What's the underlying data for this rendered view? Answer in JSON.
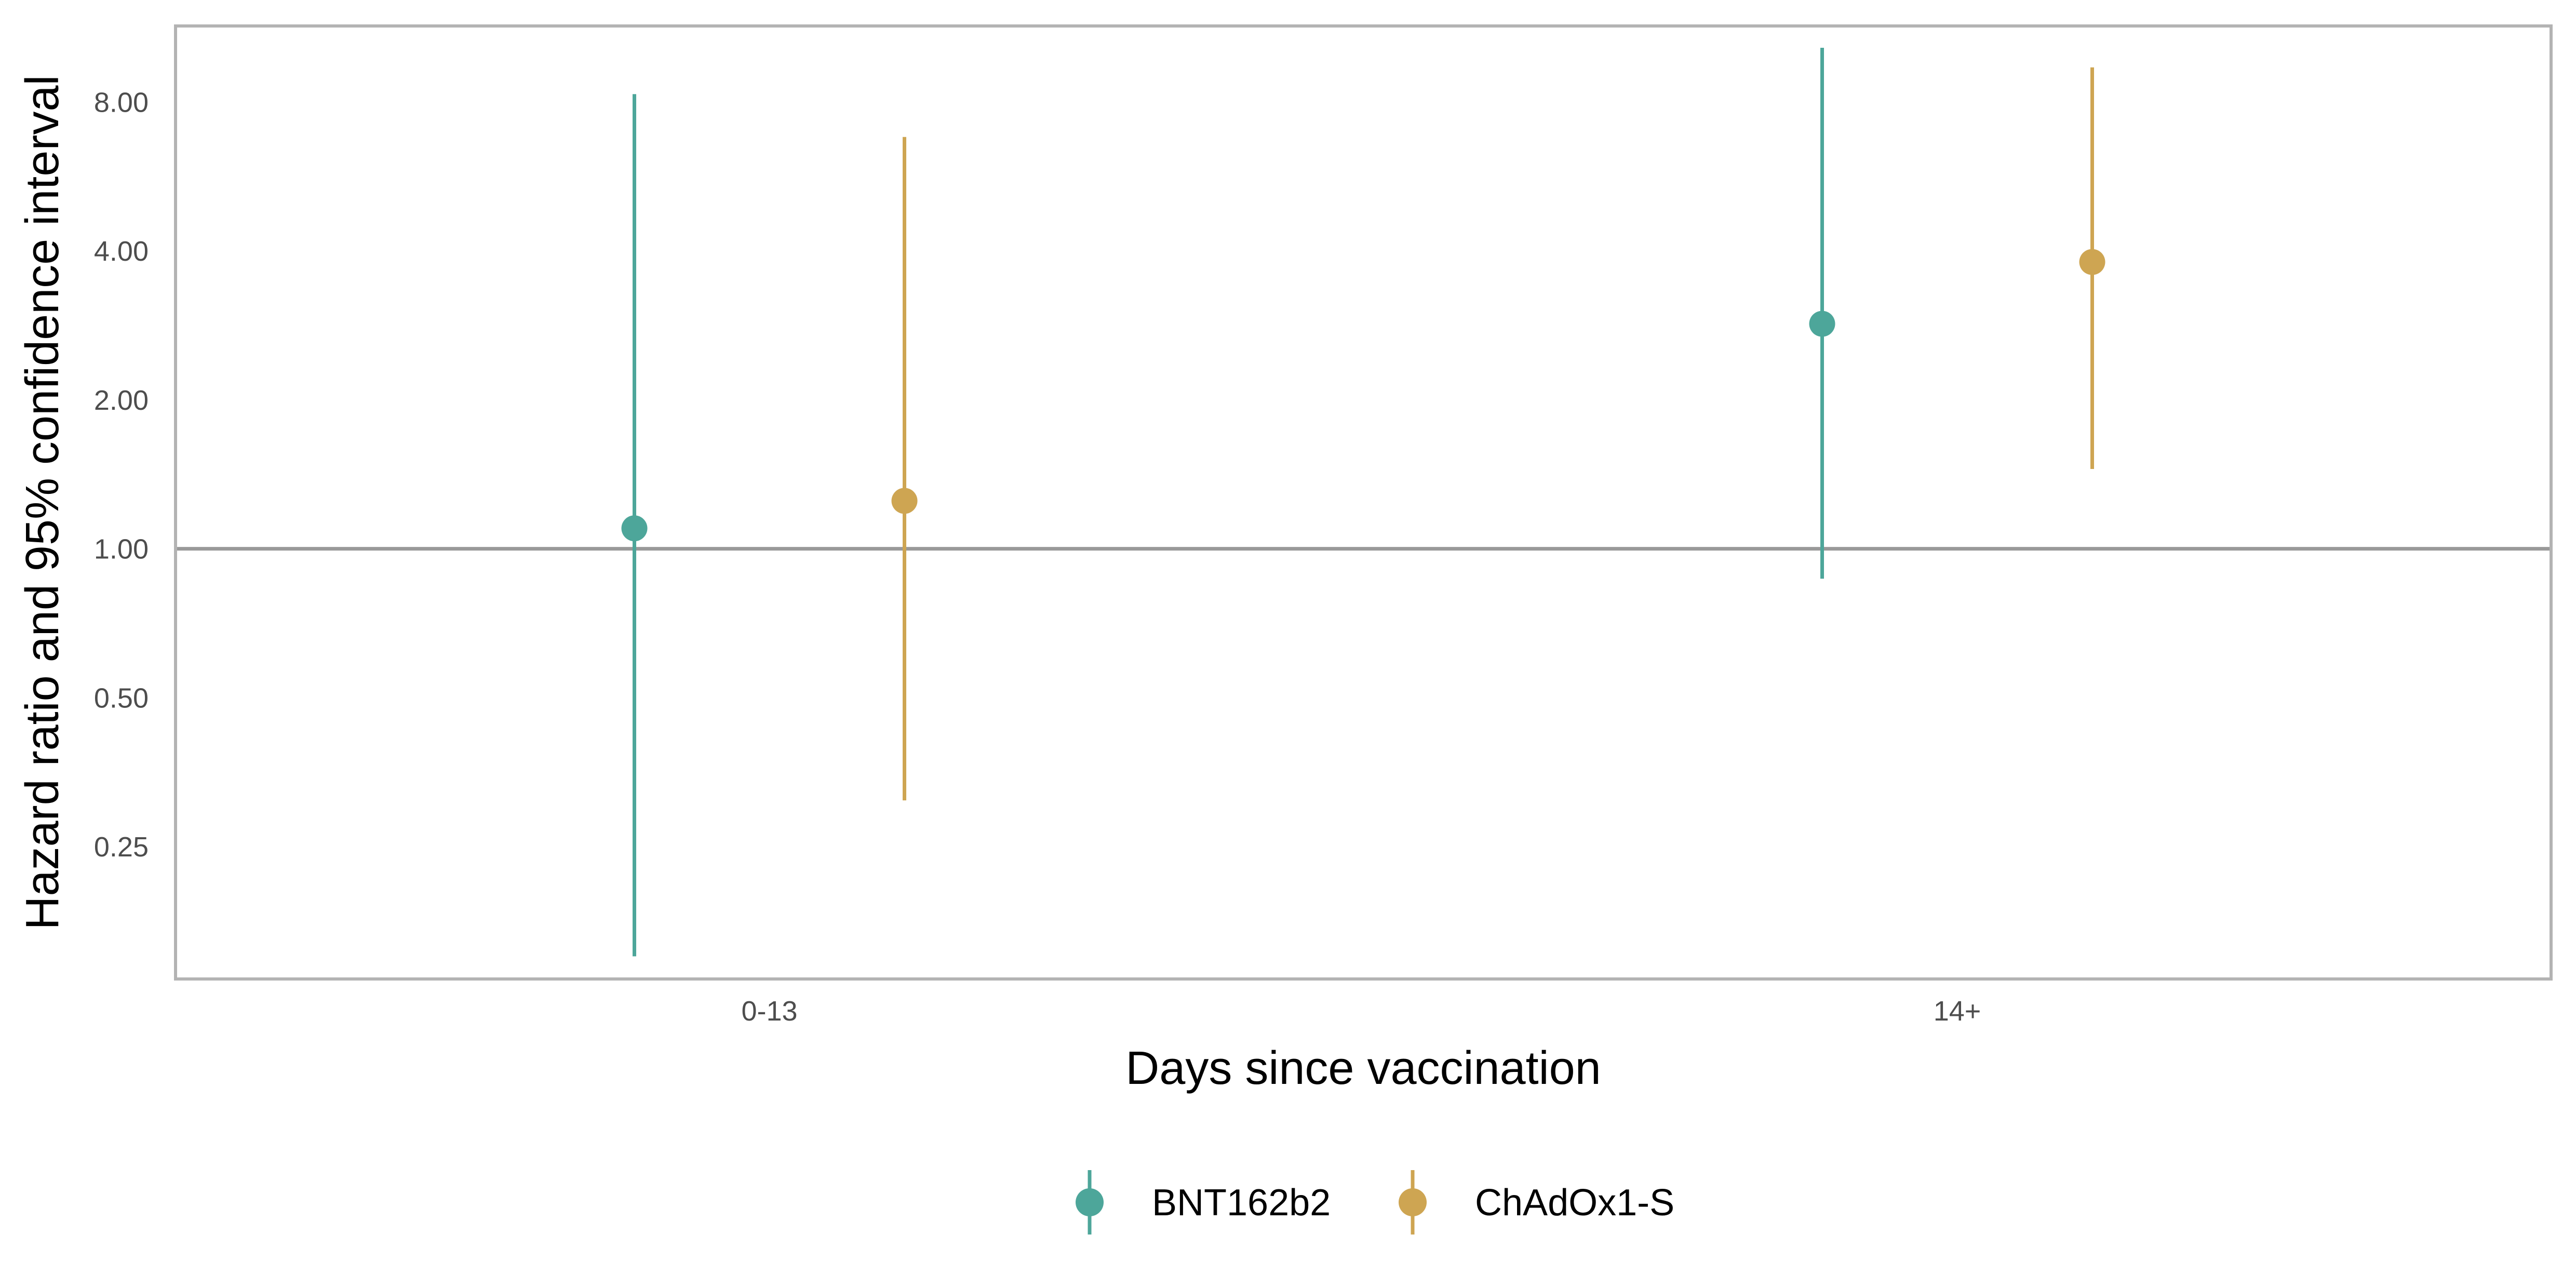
{
  "chart_data": {
    "type": "scatter",
    "subtype": "point-range",
    "categories": [
      "0-13",
      "14+"
    ],
    "xlabel": "Days since vaccination",
    "ylabel": "Hazard ratio and 95% confidence interval",
    "y_scale": "log2",
    "ylim": [
      0.135,
      11.4
    ],
    "y_ticks": [
      0.25,
      0.5,
      1,
      2,
      4,
      8
    ],
    "y_tick_labels": [
      "0.25",
      "0.50",
      "1.00",
      "2.00",
      "4.00",
      "8.00"
    ],
    "reference_line": 1,
    "grid": false,
    "legend_position": "bottom",
    "series": [
      {
        "name": "BNT162b2",
        "color": "#4da69a",
        "values": [
          1.1,
          2.85
        ],
        "lower": [
          0.15,
          0.87
        ],
        "upper": [
          8.3,
          10.3
        ]
      },
      {
        "name": "ChAdOx1-S",
        "color": "#cea552",
        "values": [
          1.25,
          3.8
        ],
        "lower": [
          0.31,
          1.45
        ],
        "upper": [
          6.8,
          9.4
        ]
      }
    ]
  }
}
